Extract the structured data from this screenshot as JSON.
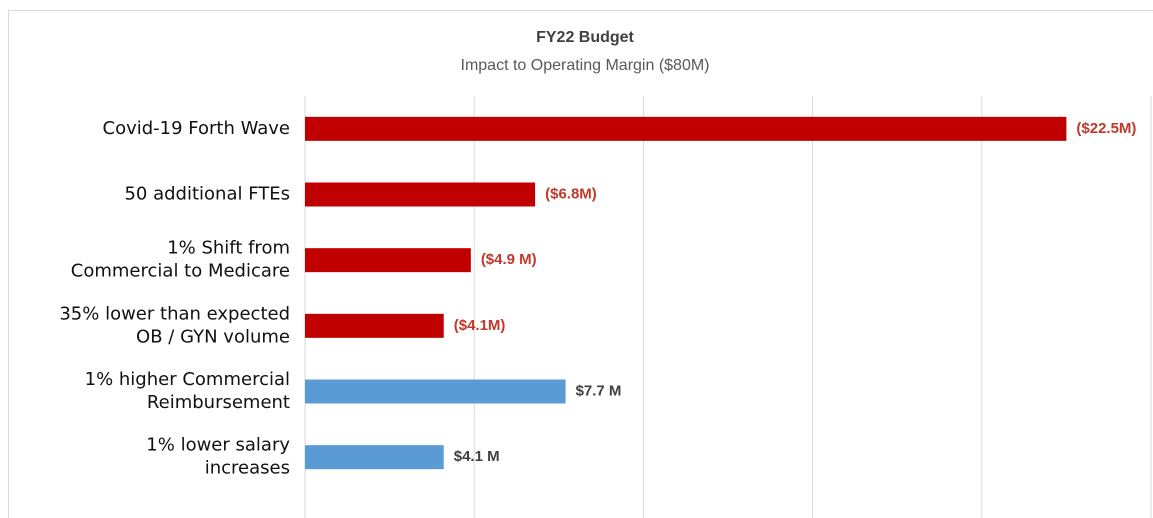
{
  "chart_data": {
    "type": "barh",
    "title": "FY22 Budget",
    "subtitle": "Impact to Operating Margin ($80M)",
    "categories": [
      [
        "Covid-19 Forth Wave"
      ],
      [
        "50 additional FTEs"
      ],
      [
        "1% Shift from",
        "Commercial to Medicare"
      ],
      [
        "35% lower than expected",
        "OB / GYN volume"
      ],
      [
        "1% higher Commercial",
        "Reimbursement"
      ],
      [
        "1% lower salary",
        "increases"
      ]
    ],
    "values": [
      22.5,
      6.8,
      4.9,
      4.1,
      7.7,
      4.1
    ],
    "value_labels": [
      "($22.5M)",
      "($6.8M)",
      "($4.9 M)",
      "($4.1M)",
      "$7.7 M",
      "$4.1 M"
    ],
    "colors": [
      "#c00000",
      "#c00000",
      "#c00000",
      "#c00000",
      "#5b9bd5",
      "#5b9bd5"
    ],
    "label_colors": [
      "#c0392b",
      "#c0392b",
      "#c0392b",
      "#c0392b",
      "#404040",
      "#404040"
    ],
    "xlim": [
      0,
      25
    ],
    "xticks": [
      0,
      5,
      10,
      15,
      20,
      25
    ],
    "grid": true
  }
}
